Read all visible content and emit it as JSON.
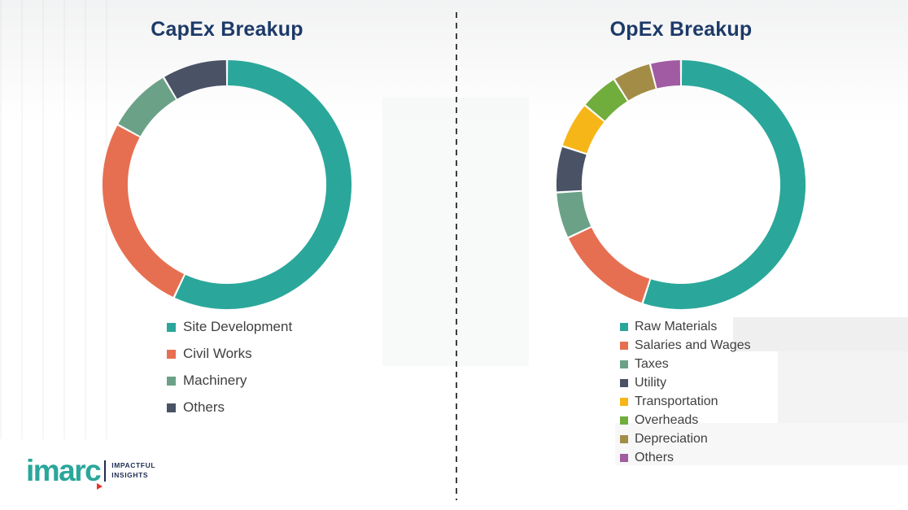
{
  "chart_data": [
    {
      "type": "pie",
      "donut": true,
      "title": "CapEx Breakup",
      "labels": [
        "Site Development",
        "Civil Works",
        "Machinery",
        "Others"
      ],
      "values": [
        57,
        26,
        8.5,
        8.5
      ],
      "colors": [
        "#2aa79a",
        "#e76f51",
        "#6ba287",
        "#4a5266"
      ],
      "legend_position": "bottom",
      "data_labels_shown": false
    },
    {
      "type": "pie",
      "donut": true,
      "title": "OpEx Breakup",
      "labels": [
        "Raw Materials",
        "Salaries and Wages",
        "Taxes",
        "Utility",
        "Transportation",
        "Overheads",
        "Depreciation",
        "Others"
      ],
      "values": [
        55,
        13,
        6,
        6,
        6,
        5,
        5,
        4
      ],
      "colors": [
        "#2aa79a",
        "#e76f51",
        "#6ba287",
        "#4a5266",
        "#f7b617",
        "#71ad3d",
        "#a38c46",
        "#a15ba2"
      ],
      "legend_position": "bottom",
      "data_labels_shown": false
    }
  ],
  "logo": {
    "brand": "imarc",
    "tagline_line1": "IMPACTFUL",
    "tagline_line2": "INSIGHTS",
    "brand_color": "#2aa79a",
    "tagline_color": "#1e2d50",
    "accent_color": "#e8312a"
  },
  "titles_color": "#1d3a68"
}
